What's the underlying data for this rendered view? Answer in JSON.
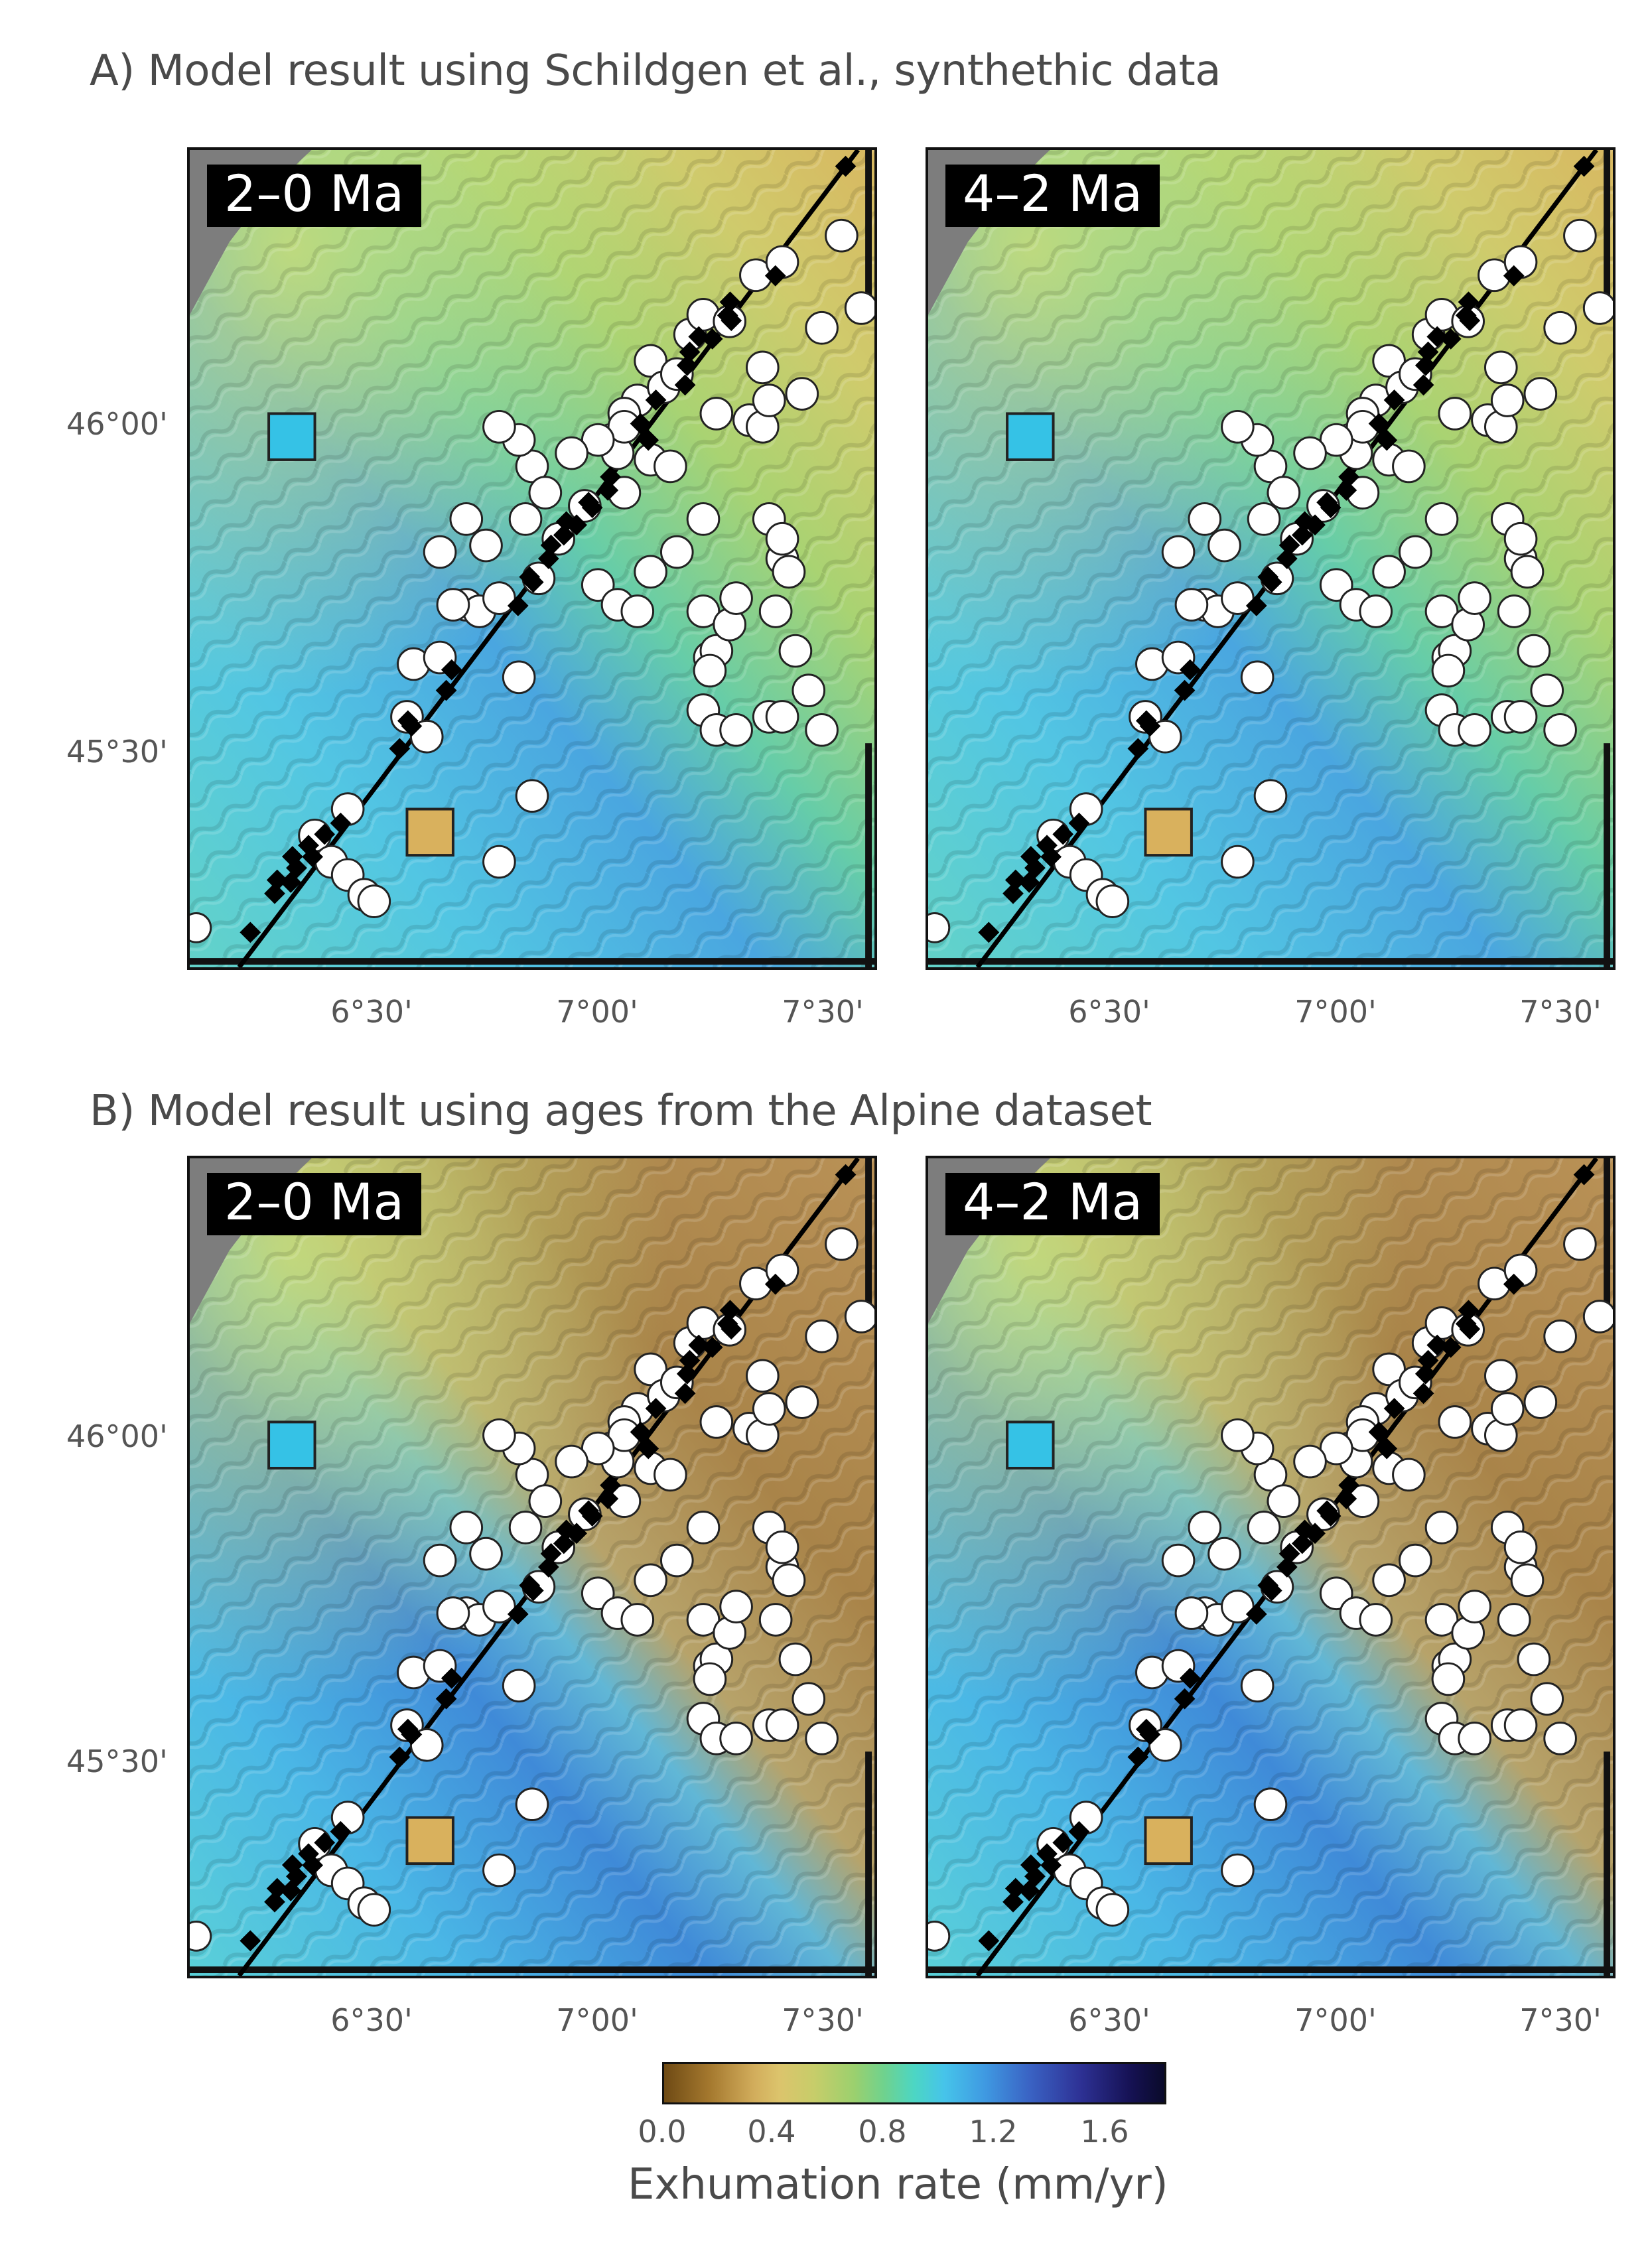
{
  "titles": {
    "a": "A) Model result using Schildgen et al., synthethic data",
    "b": "B) Model result using ages from the Alpine dataset"
  },
  "panels": [
    {
      "id": "a-left",
      "period": "2–0 Ma",
      "dataset": "synthetic"
    },
    {
      "id": "a-right",
      "period": "4–2 Ma",
      "dataset": "synthetic"
    },
    {
      "id": "b-left",
      "period": "2–0 Ma",
      "dataset": "alpine"
    },
    {
      "id": "b-right",
      "period": "4–2 Ma",
      "dataset": "alpine"
    }
  ],
  "axes": {
    "lat_ticks": [
      "46°00'",
      "45°30'"
    ],
    "lon_ticks": [
      "6°30'",
      "7°00'",
      "7°30'"
    ]
  },
  "colorbar": {
    "ticks": [
      "0.0",
      "0.4",
      "0.8",
      "1.2",
      "1.6"
    ],
    "label": "Exhumation rate (mm/yr)",
    "range": [
      0.0,
      1.8
    ],
    "colors": [
      "#6e4a14",
      "#d2ad5c",
      "#9bd06e",
      "#4cd6c4",
      "#3f9ae2",
      "#2e3296",
      "#0a0a2a"
    ]
  },
  "legend_marks": {
    "blue_square_color": "#35c2e6",
    "tan_square_color": "#d9b15d"
  }
}
